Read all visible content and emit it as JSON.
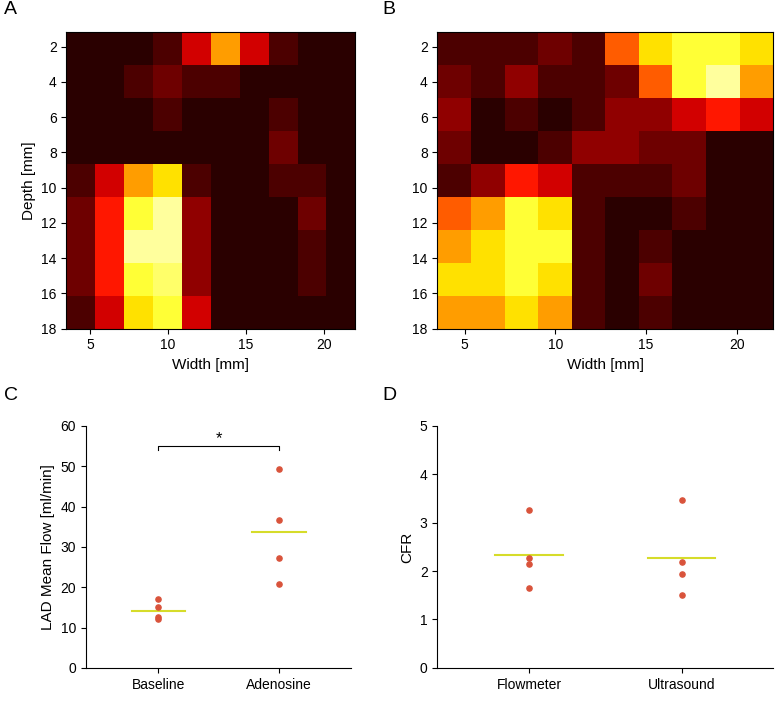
{
  "chart_data": [
    {
      "type": "heatmap",
      "label": "A",
      "xlabel": "Width [mm]",
      "ylabel": "Depth [mm]",
      "xlim": [
        3.5,
        22
      ],
      "ylim": [
        18,
        1.2
      ],
      "xticks": [
        5,
        10,
        15,
        20
      ],
      "yticks": [
        2,
        4,
        6,
        8,
        10,
        12,
        14,
        16,
        18
      ],
      "x_edges": [
        3.5,
        5.35,
        7.2,
        9.05,
        10.9,
        12.75,
        14.6,
        16.45,
        18.3,
        20.15,
        22
      ],
      "y_edges": [
        1.2,
        3.07,
        4.93,
        6.8,
        8.67,
        10.53,
        12.4,
        14.27,
        16.13,
        18
      ],
      "clim": [
        0,
        1
      ],
      "cells": [
        [
          0.05,
          0.05,
          0.05,
          0.1,
          0.3,
          0.6,
          0.3,
          0.1,
          0.05,
          0.05
        ],
        [
          0.05,
          0.05,
          0.1,
          0.15,
          0.1,
          0.1,
          0.05,
          0.05,
          0.05,
          0.05
        ],
        [
          0.05,
          0.05,
          0.05,
          0.1,
          0.05,
          0.05,
          0.05,
          0.1,
          0.05,
          0.05
        ],
        [
          0.05,
          0.05,
          0.05,
          0.05,
          0.05,
          0.05,
          0.05,
          0.15,
          0.05,
          0.05
        ],
        [
          0.1,
          0.3,
          0.6,
          0.7,
          0.1,
          0.05,
          0.05,
          0.1,
          0.1,
          0.05
        ],
        [
          0.15,
          0.4,
          0.8,
          0.9,
          0.2,
          0.05,
          0.05,
          0.05,
          0.15,
          0.05
        ],
        [
          0.15,
          0.4,
          0.9,
          0.9,
          0.2,
          0.05,
          0.05,
          0.05,
          0.1,
          0.05
        ],
        [
          0.15,
          0.4,
          0.8,
          0.85,
          0.2,
          0.05,
          0.05,
          0.05,
          0.1,
          0.05
        ],
        [
          0.1,
          0.3,
          0.7,
          0.8,
          0.3,
          0.05,
          0.05,
          0.05,
          0.05,
          0.05
        ]
      ]
    },
    {
      "type": "heatmap",
      "label": "B",
      "xlabel": "Width [mm]",
      "xlim": [
        3.5,
        22
      ],
      "ylim": [
        18,
        1.2
      ],
      "xticks": [
        5,
        10,
        15,
        20
      ],
      "yticks": [
        2,
        4,
        6,
        8,
        10,
        12,
        14,
        16,
        18
      ],
      "x_edges": [
        3.5,
        5.35,
        7.2,
        9.05,
        10.9,
        12.75,
        14.6,
        16.45,
        18.3,
        20.15,
        22
      ],
      "y_edges": [
        1.2,
        3.07,
        4.93,
        6.8,
        8.67,
        10.53,
        12.4,
        14.27,
        16.13,
        18
      ],
      "clim": [
        0,
        1
      ],
      "cells": [
        [
          0.1,
          0.1,
          0.1,
          0.15,
          0.1,
          0.5,
          0.7,
          0.8,
          0.8,
          0.7
        ],
        [
          0.15,
          0.1,
          0.2,
          0.1,
          0.1,
          0.15,
          0.5,
          0.8,
          0.9,
          0.6
        ],
        [
          0.2,
          0.05,
          0.1,
          0.05,
          0.1,
          0.2,
          0.2,
          0.3,
          0.4,
          0.3
        ],
        [
          0.15,
          0.05,
          0.05,
          0.1,
          0.2,
          0.2,
          0.15,
          0.15,
          0.05,
          0.05
        ],
        [
          0.1,
          0.2,
          0.4,
          0.3,
          0.1,
          0.1,
          0.1,
          0.15,
          0.05,
          0.05
        ],
        [
          0.5,
          0.6,
          0.8,
          0.7,
          0.1,
          0.05,
          0.05,
          0.1,
          0.05,
          0.05
        ],
        [
          0.6,
          0.7,
          0.8,
          0.8,
          0.1,
          0.05,
          0.1,
          0.05,
          0.05,
          0.05
        ],
        [
          0.7,
          0.7,
          0.8,
          0.7,
          0.1,
          0.05,
          0.15,
          0.05,
          0.05,
          0.05
        ],
        [
          0.6,
          0.6,
          0.7,
          0.6,
          0.1,
          0.05,
          0.1,
          0.05,
          0.05,
          0.05
        ]
      ]
    },
    {
      "type": "scatter",
      "label": "C",
      "ylabel": "LAD Mean Flow [ml/min]",
      "categories": [
        "Baseline",
        "Adenosine"
      ],
      "values": [
        [
          12.0,
          12.5,
          15.0,
          17.0
        ],
        [
          20.8,
          27.3,
          36.8,
          49.4
        ]
      ],
      "means": [
        14.1,
        33.6
      ],
      "color": "#d9533b",
      "ylim": [
        0,
        60
      ],
      "yticks": [
        0,
        10,
        20,
        30,
        40,
        50,
        60
      ],
      "annotations": [
        {
          "text": "*",
          "between": [
            0,
            1
          ],
          "y": 55
        }
      ]
    },
    {
      "type": "scatter",
      "label": "D",
      "ylabel": "CFR",
      "categories": [
        "Flowmeter",
        "Ultrasound"
      ],
      "values": [
        [
          1.65,
          2.15,
          2.28,
          3.27
        ],
        [
          1.5,
          1.95,
          2.18,
          3.47
        ]
      ],
      "means": [
        2.34,
        2.28
      ],
      "color": "#d9533b",
      "ylim": [
        0,
        5
      ],
      "yticks": [
        0,
        1,
        2,
        3,
        4,
        5
      ]
    }
  ]
}
